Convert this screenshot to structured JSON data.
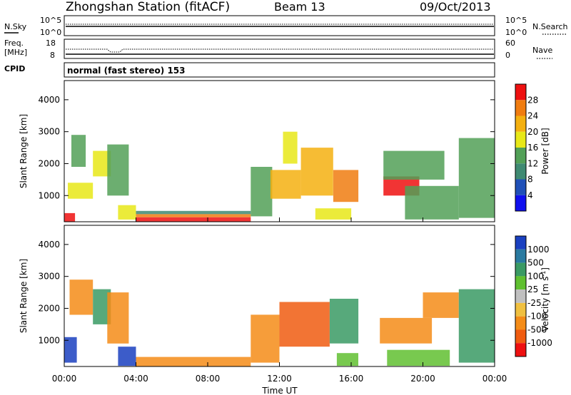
{
  "header": {
    "title": "Zhongshan Station (fitACF)",
    "beam": "Beam 13",
    "date": "09/Oct/2013"
  },
  "nsky_panel": {
    "left_label": "N.Sky",
    "left_ticks": [
      "10^5",
      "10^0"
    ],
    "right_label": "N.Search",
    "right_ticks": [
      "10^5",
      "10^0"
    ]
  },
  "freq_panel": {
    "left_label_line1": "Freq.",
    "left_label_line2": "[MHz]",
    "left_ticks": [
      "18",
      "8"
    ],
    "right_label": "Nave",
    "right_ticks": [
      "60",
      "0"
    ]
  },
  "cpid": {
    "label": "CPID",
    "value": "normal (fast stereo) 153"
  },
  "colors": {
    "power": [
      "#1010ee",
      "#2050b8",
      "#3f8a72",
      "#52a057",
      "#e8e818",
      "#f4b010",
      "#f07c10",
      "#ee1010"
    ],
    "velocity": [
      "#ee1010",
      "#f05c10",
      "#f48c18",
      "#f0c040",
      "#c0c0c0",
      "#60c030",
      "#3a9a64",
      "#2a7aa0",
      "#1a40c0"
    ]
  },
  "chart_data": [
    {
      "type": "heatmap",
      "title": "",
      "xlabel": "Time UT",
      "ylabel": "Slant Range [km]",
      "x_ticks": [
        "00:00",
        "04:00",
        "08:00",
        "12:00",
        "16:00",
        "20:00",
        "00:00"
      ],
      "xlim_hours": [
        0,
        24
      ],
      "y_ticks": [
        1000,
        2000,
        3000,
        4000
      ],
      "ylim": [
        180,
        4600
      ],
      "colorbar": {
        "label": "Power [dB]",
        "ticks": [
          "4",
          "8",
          "12",
          "16",
          "20",
          "24",
          "28"
        ]
      },
      "regions": [
        {
          "t0": 0.0,
          "t1": 0.6,
          "r0": 180,
          "r1": 450,
          "level": 7
        },
        {
          "t0": 0.2,
          "t1": 1.6,
          "r0": 900,
          "r1": 1400,
          "level": 4
        },
        {
          "t0": 0.4,
          "t1": 1.2,
          "r0": 1900,
          "r1": 2900,
          "level": 3
        },
        {
          "t0": 1.6,
          "t1": 2.6,
          "r0": 1600,
          "r1": 2400,
          "level": 4
        },
        {
          "t0": 2.4,
          "t1": 3.6,
          "r0": 1000,
          "r1": 2600,
          "level": 3
        },
        {
          "t0": 3.0,
          "t1": 4.0,
          "r0": 250,
          "r1": 700,
          "level": 4
        },
        {
          "t0": 4.0,
          "t1": 10.4,
          "r0": 180,
          "r1": 320,
          "level": 7
        },
        {
          "t0": 4.0,
          "t1": 10.4,
          "r0": 320,
          "r1": 420,
          "level": 6
        },
        {
          "t0": 4.0,
          "t1": 10.4,
          "r0": 420,
          "r1": 520,
          "level": 2
        },
        {
          "t0": 10.4,
          "t1": 11.6,
          "r0": 350,
          "r1": 1900,
          "level": 3
        },
        {
          "t0": 11.5,
          "t1": 13.2,
          "r0": 900,
          "r1": 1800,
          "level": 5
        },
        {
          "t0": 12.2,
          "t1": 13.0,
          "r0": 2000,
          "r1": 3000,
          "level": 4
        },
        {
          "t0": 13.2,
          "t1": 15.0,
          "r0": 1000,
          "r1": 2500,
          "level": 5
        },
        {
          "t0": 15.0,
          "t1": 16.4,
          "r0": 800,
          "r1": 1800,
          "level": 6
        },
        {
          "t0": 14.0,
          "t1": 16.0,
          "r0": 250,
          "r1": 600,
          "level": 4
        },
        {
          "t0": 17.8,
          "t1": 19.8,
          "r0": 1000,
          "r1": 1600,
          "level": 7
        },
        {
          "t0": 17.8,
          "t1": 21.2,
          "r0": 1500,
          "r1": 2400,
          "level": 3
        },
        {
          "t0": 19.0,
          "t1": 22.0,
          "r0": 250,
          "r1": 1300,
          "level": 3
        },
        {
          "t0": 22.0,
          "t1": 24.0,
          "r0": 300,
          "r1": 2800,
          "level": 3
        }
      ]
    },
    {
      "type": "heatmap",
      "title": "",
      "xlabel": "Time UT",
      "ylabel": "Slant Range [km]",
      "x_ticks": [
        "00:00",
        "04:00",
        "08:00",
        "12:00",
        "16:00",
        "20:00",
        "00:00"
      ],
      "xlim_hours": [
        0,
        24
      ],
      "y_ticks": [
        1000,
        2000,
        3000,
        4000
      ],
      "ylim": [
        180,
        4600
      ],
      "colorbar": {
        "label": "Velocity [m s",
        "label_sup": "-1",
        "label_end": "]",
        "ticks": [
          "1000",
          "500",
          "100",
          "25",
          "-25",
          "-100",
          "-500",
          "-1000"
        ]
      },
      "regions": [
        {
          "t0": 0.0,
          "t1": 0.7,
          "r0": 300,
          "r1": 1100,
          "level": 8
        },
        {
          "t0": 0.3,
          "t1": 1.6,
          "r0": 1800,
          "r1": 2900,
          "level": 2
        },
        {
          "t0": 1.6,
          "t1": 2.6,
          "r0": 1500,
          "r1": 2600,
          "level": 6
        },
        {
          "t0": 2.4,
          "t1": 3.6,
          "r0": 900,
          "r1": 2500,
          "level": 2
        },
        {
          "t0": 3.0,
          "t1": 4.0,
          "r0": 200,
          "r1": 800,
          "level": 8
        },
        {
          "t0": 4.0,
          "t1": 10.4,
          "r0": 180,
          "r1": 480,
          "level": 2
        },
        {
          "t0": 10.4,
          "t1": 12.0,
          "r0": 300,
          "r1": 1800,
          "level": 2
        },
        {
          "t0": 12.0,
          "t1": 14.8,
          "r0": 800,
          "r1": 2200,
          "level": 1
        },
        {
          "t0": 14.8,
          "t1": 16.4,
          "r0": 900,
          "r1": 2300,
          "level": 6
        },
        {
          "t0": 15.2,
          "t1": 16.4,
          "r0": 200,
          "r1": 600,
          "level": 5
        },
        {
          "t0": 17.6,
          "t1": 20.5,
          "r0": 900,
          "r1": 1700,
          "level": 2
        },
        {
          "t0": 18.0,
          "t1": 21.5,
          "r0": 200,
          "r1": 700,
          "level": 5
        },
        {
          "t0": 20.0,
          "t1": 22.0,
          "r0": 1700,
          "r1": 2500,
          "level": 2
        },
        {
          "t0": 22.0,
          "t1": 24.0,
          "r0": 300,
          "r1": 2600,
          "level": 6
        }
      ]
    }
  ]
}
